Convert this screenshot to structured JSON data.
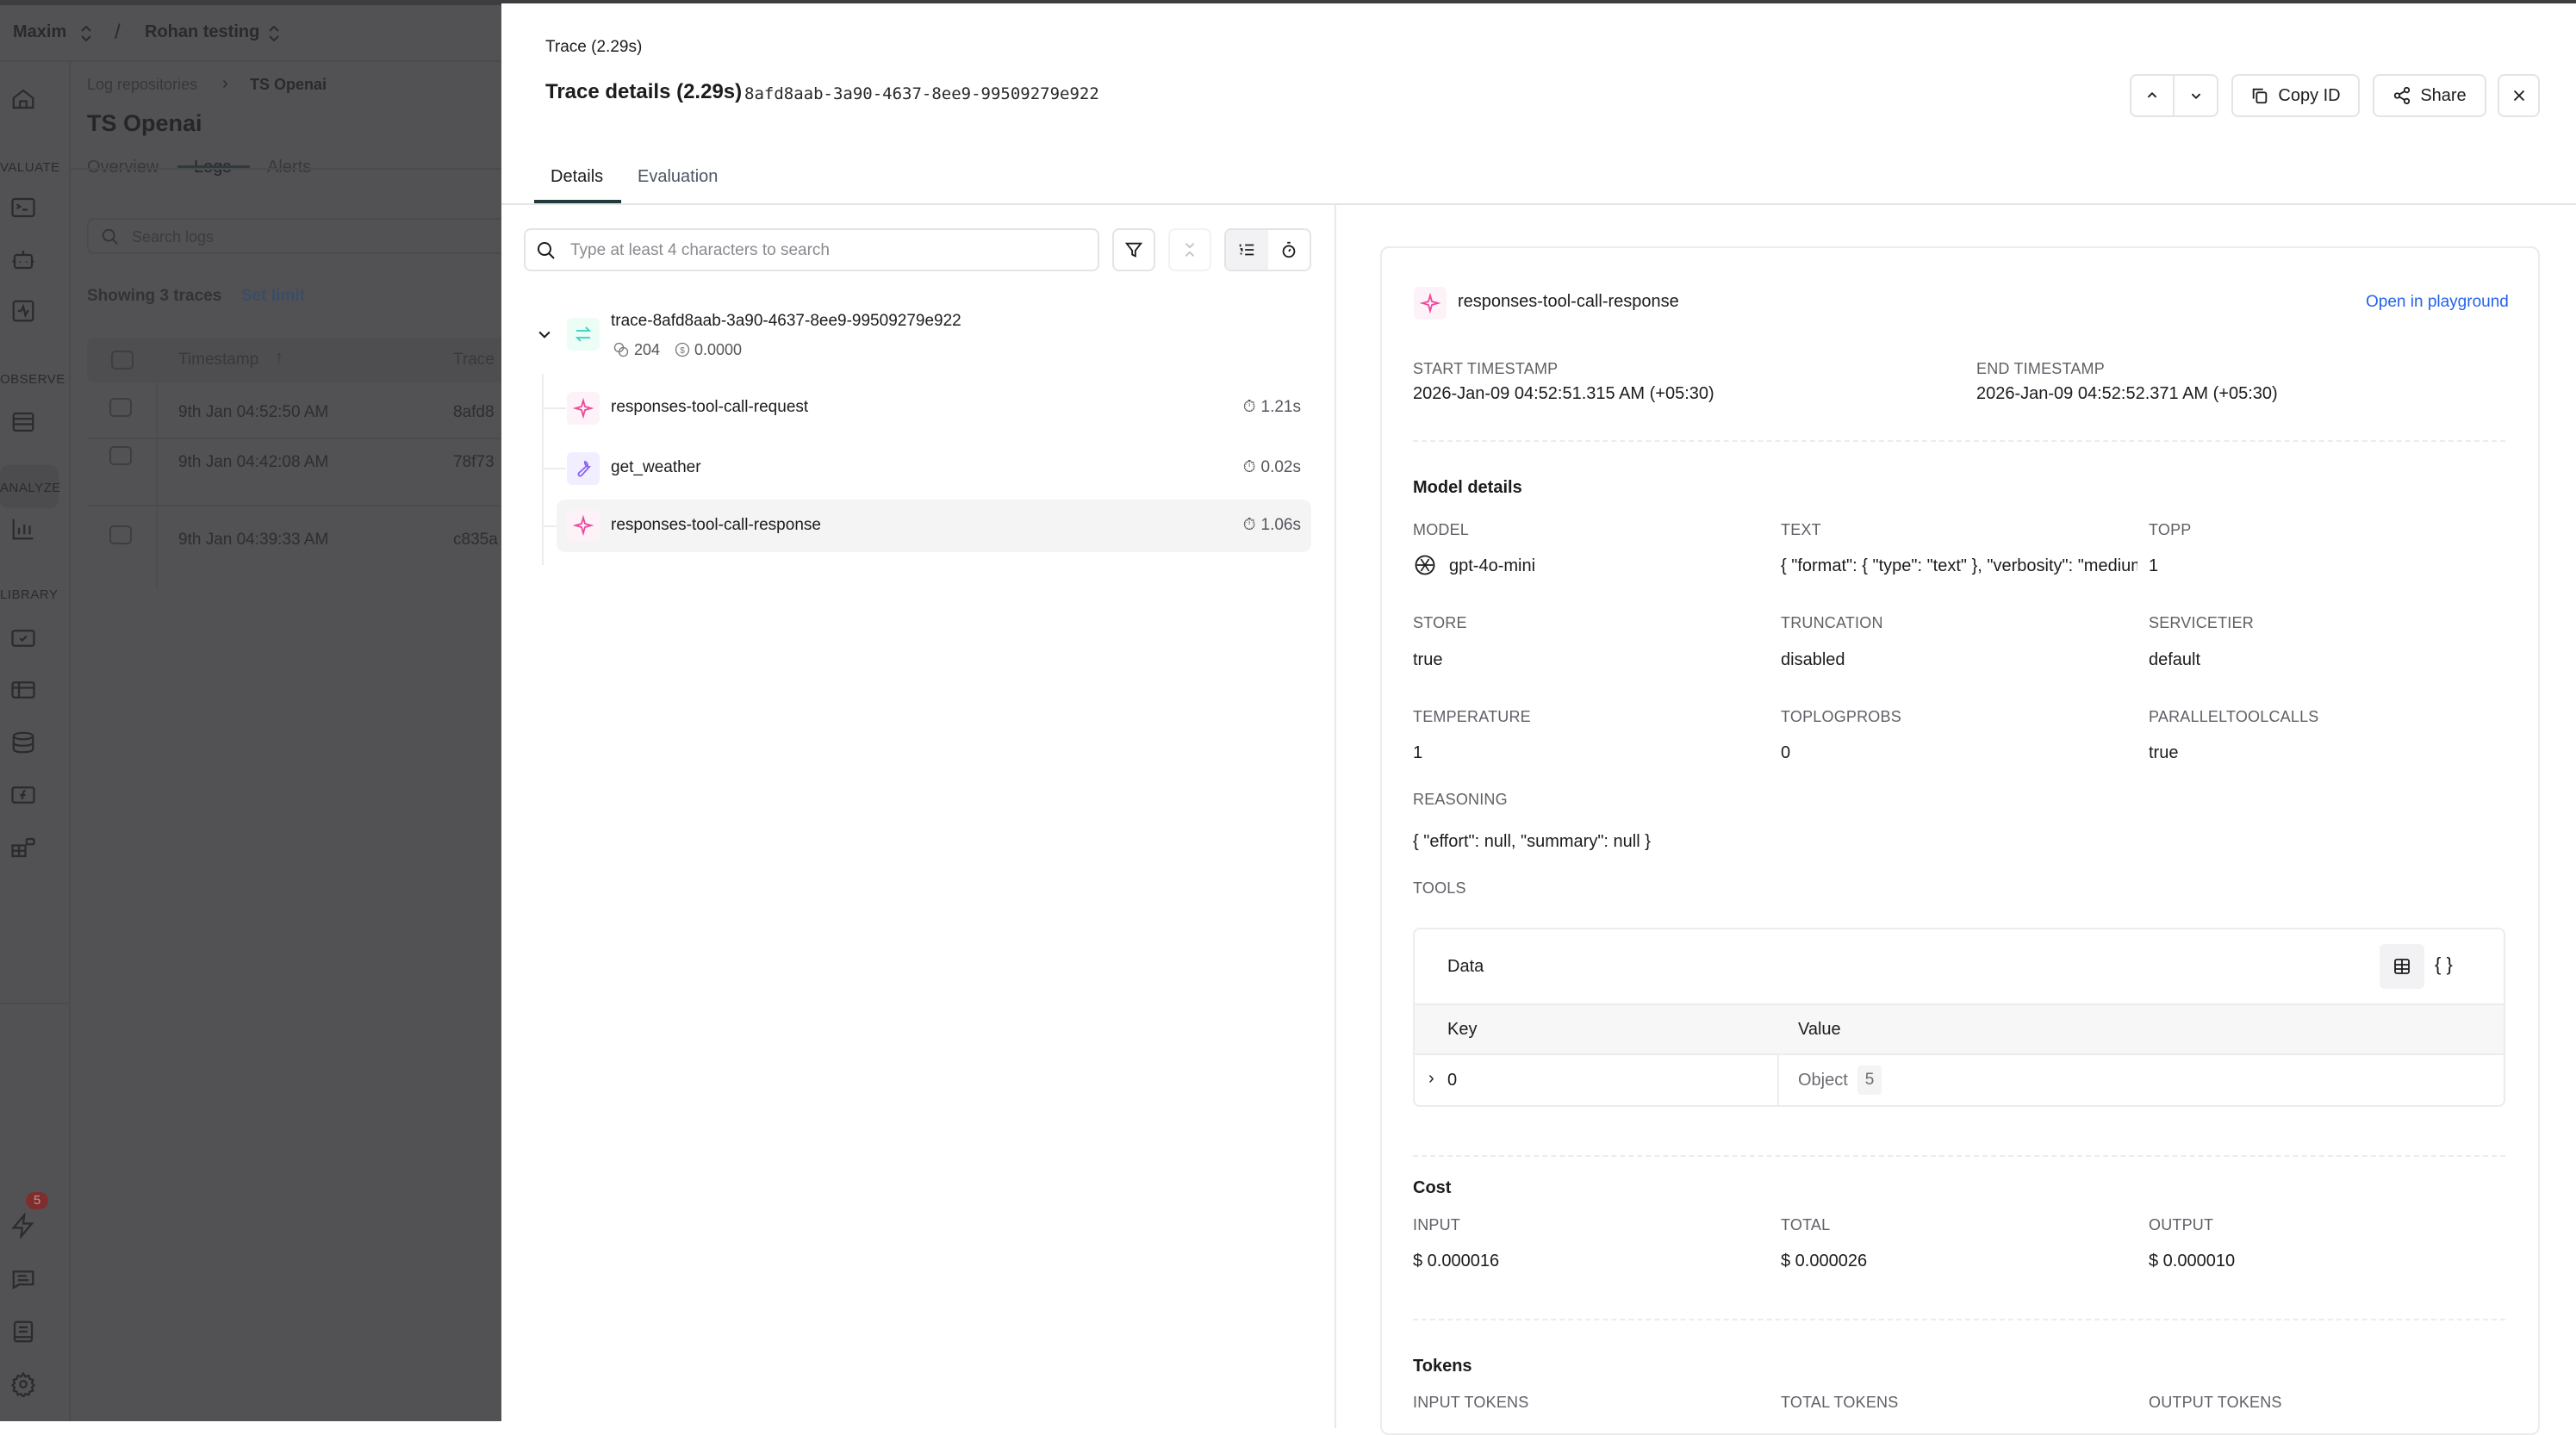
{
  "app": {
    "org": "Maxim",
    "separator": "/",
    "workspace": "Rohan testing",
    "sidebar": {
      "sections": [
        "VALUATE",
        "OBSERVE",
        "ANALYZE",
        "LIBRARY"
      ],
      "notification_badge": "5"
    },
    "breadcrumb": [
      "Log repositories",
      "TS Openai"
    ],
    "title": "TS Openai",
    "tabs": [
      "Overview",
      "Logs",
      "Alerts"
    ],
    "active_tab": "Logs",
    "search_placeholder": "Search logs",
    "showing": "Showing 3 traces",
    "set_limit": "Set limit",
    "table": {
      "headers": [
        "Timestamp",
        "Trace"
      ],
      "rows": [
        {
          "timestamp": "9th Jan 04:52:50 AM",
          "trace": "8afd8"
        },
        {
          "timestamp": "9th Jan 04:42:08 AM",
          "trace": "78f73"
        },
        {
          "timestamp": "9th Jan 04:39:33 AM",
          "trace": "c835a"
        }
      ]
    }
  },
  "panel": {
    "subtitle": "Trace (2.29s)",
    "title": "Trace details (2.29s)",
    "trace_id": "8afd8aab-3a90-4637-8ee9-99509279e922",
    "buttons": {
      "copy_id": "Copy ID",
      "share": "Share"
    },
    "tabs": [
      "Details",
      "Evaluation"
    ],
    "active_tab": "Details",
    "search_placeholder": "Type at least 4 characters to search",
    "tree": {
      "root": {
        "name": "trace-8afd8aab-3a90-4637-8ee9-99509279e922",
        "tokens": "204",
        "cost": "0.0000"
      },
      "children": [
        {
          "name": "responses-tool-call-request",
          "time": "1.21s",
          "icon": "sparkle-icon",
          "color": "#ec4899"
        },
        {
          "name": "get_weather",
          "time": "0.02s",
          "icon": "wrench-icon",
          "color": "#8b5cf6"
        },
        {
          "name": "responses-tool-call-response",
          "time": "1.06s",
          "icon": "sparkle-icon",
          "color": "#ec4899",
          "selected": true
        }
      ]
    },
    "detail": {
      "name": "responses-tool-call-response",
      "open_playground": "Open in playground",
      "start_label": "START TIMESTAMP",
      "start_value": "2026-Jan-09 04:52:51.315 AM (+05:30)",
      "end_label": "END TIMESTAMP",
      "end_value": "2026-Jan-09 04:52:52.371 AM (+05:30)",
      "model_heading": "Model details",
      "fields": [
        {
          "label": "MODEL",
          "value": "gpt-4o-mini"
        },
        {
          "label": "TEXT",
          "value": "{ \"format\": { \"type\": \"text\" }, \"verbosity\": \"medium\" }"
        },
        {
          "label": "TOPP",
          "value": "1"
        },
        {
          "label": "STORE",
          "value": "true"
        },
        {
          "label": "TRUNCATION",
          "value": "disabled"
        },
        {
          "label": "SERVICETIER",
          "value": "default"
        },
        {
          "label": "TEMPERATURE",
          "value": "1"
        },
        {
          "label": "TOPLOGPROBS",
          "value": "0"
        },
        {
          "label": "PARALLELTOOLCALLS",
          "value": "true"
        }
      ],
      "reasoning_label": "REASONING",
      "reasoning_value": "{ \"effort\": null, \"summary\": null }",
      "tools_label": "TOOLS",
      "tools_table": {
        "title": "Data",
        "headers": [
          "Key",
          "Value"
        ],
        "rows": [
          {
            "key": "0",
            "value": "Object",
            "count": "5"
          }
        ]
      },
      "cost_heading": "Cost",
      "cost": [
        {
          "label": "INPUT",
          "value": "$ 0.000016"
        },
        {
          "label": "TOTAL",
          "value": "$ 0.000026"
        },
        {
          "label": "OUTPUT",
          "value": "$ 0.000010"
        }
      ],
      "tokens_heading": "Tokens",
      "tokens": [
        {
          "label": "INPUT TOKENS"
        },
        {
          "label": "TOTAL TOKENS"
        },
        {
          "label": "OUTPUT TOKENS"
        }
      ]
    }
  },
  "colors": {
    "accent_link": "#2563eb",
    "tab_underline": "#1f3a3a",
    "trace_icon": "#2dd4bf",
    "badge": "#7f2d2d"
  }
}
